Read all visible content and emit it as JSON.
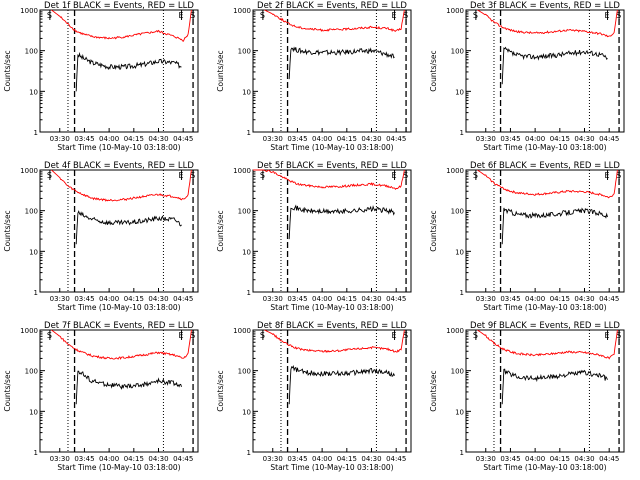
{
  "figure": {
    "ylabel": "Counts/sec",
    "xlabel": "Start Time (10-May-10 03:18:00)",
    "colors": {
      "events": "#000000",
      "lld": "#ff0000",
      "axes": "#000000"
    }
  },
  "chart_data": [
    {
      "type": "line",
      "title": "Det 1f BLACK = Events, RED = LLD",
      "xlabel": "Start Time (10-May-10 03:18:00)",
      "ylabel": "Counts/sec",
      "y_scale": "log",
      "ylim": [
        1,
        1000
      ],
      "xlim": [
        "03:18",
        "04:54"
      ],
      "xticks": [
        "03:30",
        "03:45",
        "04:00",
        "04:15",
        "04:30",
        "04:45"
      ],
      "yticks": [
        "1",
        "10",
        "100",
        "1000"
      ],
      "markers": [
        {
          "time": "03:24",
          "label": "S"
        },
        {
          "time": "04:44",
          "label": "E"
        },
        {
          "time": "04:51",
          "label": "S"
        }
      ],
      "dotted_lines": [
        "03:35",
        "04:33"
      ],
      "dashed_lines": [
        "03:39",
        "04:51"
      ],
      "series": [
        {
          "name": "Events",
          "color": "#000000",
          "x": [
            "03:40",
            "03:41",
            "03:43",
            "03:46",
            "03:50",
            "04:00",
            "04:10",
            "04:20",
            "04:30",
            "04:40",
            "04:44"
          ],
          "values": [
            10,
            80,
            70,
            60,
            50,
            40,
            40,
            45,
            55,
            50,
            40
          ]
        },
        {
          "name": "LLD",
          "color": "#ff0000",
          "x": [
            "03:25",
            "03:30",
            "03:35",
            "03:40",
            "03:45",
            "03:50",
            "04:00",
            "04:10",
            "04:20",
            "04:30",
            "04:40",
            "04:45",
            "04:48",
            "04:50"
          ],
          "values": [
            1000,
            700,
            450,
            300,
            250,
            220,
            200,
            220,
            260,
            300,
            220,
            180,
            250,
            1000
          ]
        }
      ]
    },
    {
      "type": "line",
      "title": "Det 2f BLACK = Events, RED = LLD",
      "xlabel": "Start Time (10-May-10 03:18:00)",
      "ylabel": "Counts/sec",
      "y_scale": "log",
      "ylim": [
        1,
        1000
      ],
      "xlim": [
        "03:18",
        "04:54"
      ],
      "xticks": [
        "03:30",
        "03:45",
        "04:00",
        "04:15",
        "04:30",
        "04:45"
      ],
      "yticks": [
        "1",
        "10",
        "100",
        "1000"
      ],
      "markers": [
        {
          "time": "03:24",
          "label": "S"
        },
        {
          "time": "04:44",
          "label": "E"
        },
        {
          "time": "04:51",
          "label": "S"
        }
      ],
      "dotted_lines": [
        "03:35",
        "04:33"
      ],
      "dashed_lines": [
        "03:39",
        "04:51"
      ],
      "series": [
        {
          "name": "Events",
          "color": "#000000",
          "x": [
            "03:40",
            "03:41",
            "03:43",
            "03:46",
            "03:50",
            "04:00",
            "04:10",
            "04:20",
            "04:30",
            "04:40",
            "04:44"
          ],
          "values": [
            20,
            120,
            110,
            100,
            95,
            90,
            90,
            95,
            100,
            80,
            70
          ]
        },
        {
          "name": "LLD",
          "color": "#ff0000",
          "x": [
            "03:25",
            "03:30",
            "03:35",
            "03:40",
            "03:45",
            "03:50",
            "04:00",
            "04:10",
            "04:20",
            "04:30",
            "04:40",
            "04:45",
            "04:48",
            "04:50"
          ],
          "values": [
            1000,
            800,
            600,
            450,
            380,
            350,
            320,
            330,
            350,
            380,
            350,
            300,
            350,
            1000
          ]
        }
      ]
    },
    {
      "type": "line",
      "title": "Det 3f BLACK = Events, RED = LLD",
      "xlabel": "Start Time (10-May-10 03:18:00)",
      "ylabel": "Counts/sec",
      "y_scale": "log",
      "ylim": [
        1,
        1000
      ],
      "xlim": [
        "03:18",
        "04:54"
      ],
      "xticks": [
        "03:30",
        "03:45",
        "04:00",
        "04:15",
        "04:30",
        "04:45"
      ],
      "yticks": [
        "1",
        "10",
        "100",
        "1000"
      ],
      "markers": [
        {
          "time": "03:24",
          "label": "S"
        },
        {
          "time": "04:44",
          "label": "E"
        },
        {
          "time": "04:51",
          "label": "S"
        }
      ],
      "dotted_lines": [
        "03:35",
        "04:33"
      ],
      "dashed_lines": [
        "03:39",
        "04:51"
      ],
      "series": [
        {
          "name": "Events",
          "color": "#000000",
          "x": [
            "03:40",
            "03:41",
            "03:43",
            "03:46",
            "03:50",
            "04:00",
            "04:10",
            "04:20",
            "04:30",
            "04:40",
            "04:44"
          ],
          "values": [
            15,
            110,
            100,
            85,
            75,
            70,
            75,
            85,
            95,
            80,
            65
          ]
        },
        {
          "name": "LLD",
          "color": "#ff0000",
          "x": [
            "03:25",
            "03:30",
            "03:35",
            "03:40",
            "03:45",
            "03:50",
            "04:00",
            "04:10",
            "04:20",
            "04:30",
            "04:40",
            "04:45",
            "04:48",
            "04:50"
          ],
          "values": [
            1000,
            750,
            500,
            380,
            320,
            290,
            270,
            290,
            320,
            300,
            260,
            220,
            280,
            1000
          ]
        }
      ]
    },
    {
      "type": "line",
      "title": "Det 4f BLACK = Events, RED = LLD",
      "xlabel": "Start Time (10-May-10 03:18:00)",
      "ylabel": "Counts/sec",
      "y_scale": "log",
      "ylim": [
        1,
        1000
      ],
      "xlim": [
        "03:18",
        "04:54"
      ],
      "xticks": [
        "03:30",
        "03:45",
        "04:00",
        "04:15",
        "04:30",
        "04:45"
      ],
      "yticks": [
        "1",
        "10",
        "100",
        "1000"
      ],
      "markers": [
        {
          "time": "03:24",
          "label": "S"
        },
        {
          "time": "04:44",
          "label": "E"
        },
        {
          "time": "04:51",
          "label": "S"
        }
      ],
      "dotted_lines": [
        "03:35",
        "04:33"
      ],
      "dashed_lines": [
        "03:39",
        "04:51"
      ],
      "series": [
        {
          "name": "Events",
          "color": "#000000",
          "x": [
            "03:40",
            "03:41",
            "03:43",
            "03:46",
            "03:50",
            "04:00",
            "04:10",
            "04:20",
            "04:30",
            "04:40",
            "04:44"
          ],
          "values": [
            15,
            90,
            80,
            70,
            60,
            50,
            50,
            55,
            65,
            60,
            45
          ]
        },
        {
          "name": "LLD",
          "color": "#ff0000",
          "x": [
            "03:25",
            "03:30",
            "03:35",
            "03:40",
            "03:45",
            "03:50",
            "04:00",
            "04:10",
            "04:20",
            "04:30",
            "04:40",
            "04:45",
            "04:48",
            "04:50"
          ],
          "values": [
            1000,
            650,
            400,
            300,
            240,
            200,
            180,
            190,
            220,
            250,
            220,
            190,
            240,
            1000
          ]
        }
      ]
    },
    {
      "type": "line",
      "title": "Det 5f BLACK = Events, RED = LLD",
      "xlabel": "Start Time (10-May-10 03:18:00)",
      "ylabel": "Counts/sec",
      "y_scale": "log",
      "ylim": [
        1,
        1000
      ],
      "xlim": [
        "03:18",
        "04:54"
      ],
      "xticks": [
        "03:30",
        "03:45",
        "04:00",
        "04:15",
        "04:30",
        "04:45"
      ],
      "yticks": [
        "1",
        "10",
        "100",
        "1000"
      ],
      "markers": [
        {
          "time": "03:24",
          "label": "S"
        },
        {
          "time": "04:44",
          "label": "E"
        },
        {
          "time": "04:51",
          "label": "S"
        }
      ],
      "dotted_lines": [
        "03:35",
        "04:33"
      ],
      "dashed_lines": [
        "03:39",
        "04:51"
      ],
      "series": [
        {
          "name": "Events",
          "color": "#000000",
          "x": [
            "03:40",
            "03:41",
            "03:43",
            "03:46",
            "03:50",
            "04:00",
            "04:10",
            "04:20",
            "04:30",
            "04:40",
            "04:44"
          ],
          "values": [
            20,
            130,
            120,
            110,
            100,
            95,
            95,
            100,
            110,
            100,
            90
          ]
        },
        {
          "name": "LLD",
          "color": "#ff0000",
          "x": [
            "03:18",
            "03:25",
            "03:30",
            "03:35",
            "03:40",
            "03:45",
            "03:50",
            "04:00",
            "04:10",
            "04:20",
            "04:30",
            "04:40",
            "04:45",
            "04:48",
            "04:50"
          ],
          "values": [
            1000,
            1000,
            900,
            700,
            550,
            450,
            420,
            380,
            390,
            420,
            450,
            400,
            350,
            400,
            1000
          ]
        }
      ]
    },
    {
      "type": "line",
      "title": "Det 6f BLACK = Events, RED = LLD",
      "xlabel": "Start Time (10-May-10 03:18:00)",
      "ylabel": "Counts/sec",
      "y_scale": "log",
      "ylim": [
        1,
        1000
      ],
      "xlim": [
        "03:18",
        "04:54"
      ],
      "xticks": [
        "03:30",
        "03:45",
        "04:00",
        "04:15",
        "04:30",
        "04:45"
      ],
      "yticks": [
        "1",
        "10",
        "100",
        "1000"
      ],
      "markers": [
        {
          "time": "03:24",
          "label": "S"
        },
        {
          "time": "04:44",
          "label": "E"
        },
        {
          "time": "04:51",
          "label": "S"
        }
      ],
      "dotted_lines": [
        "03:35",
        "04:33"
      ],
      "dashed_lines": [
        "03:39",
        "04:51"
      ],
      "series": [
        {
          "name": "Events",
          "color": "#000000",
          "x": [
            "03:40",
            "03:41",
            "03:43",
            "03:46",
            "03:50",
            "04:00",
            "04:10",
            "04:20",
            "04:30",
            "04:40",
            "04:44"
          ],
          "values": [
            15,
            110,
            100,
            90,
            80,
            75,
            80,
            90,
            100,
            85,
            70
          ]
        },
        {
          "name": "LLD",
          "color": "#ff0000",
          "x": [
            "03:25",
            "03:30",
            "03:35",
            "03:40",
            "03:45",
            "03:50",
            "04:00",
            "04:10",
            "04:20",
            "04:30",
            "04:40",
            "04:45",
            "04:48",
            "04:50"
          ],
          "values": [
            1000,
            720,
            480,
            360,
            300,
            270,
            250,
            270,
            300,
            290,
            250,
            210,
            260,
            1000
          ]
        }
      ]
    },
    {
      "type": "line",
      "title": "Det 7f BLACK = Events, RED = LLD",
      "xlabel": "Start Time (10-May-10 03:18:00)",
      "ylabel": "Counts/sec",
      "y_scale": "log",
      "ylim": [
        1,
        1000
      ],
      "xlim": [
        "03:18",
        "04:54"
      ],
      "xticks": [
        "03:30",
        "03:45",
        "04:00",
        "04:15",
        "04:30",
        "04:45"
      ],
      "yticks": [
        "1",
        "10",
        "100",
        "1000"
      ],
      "markers": [
        {
          "time": "03:24",
          "label": "S"
        },
        {
          "time": "04:44",
          "label": "E"
        },
        {
          "time": "04:51",
          "label": "S"
        }
      ],
      "dotted_lines": [
        "03:35",
        "04:33"
      ],
      "dashed_lines": [
        "03:39",
        "04:51"
      ],
      "series": [
        {
          "name": "Events",
          "color": "#000000",
          "x": [
            "03:40",
            "03:41",
            "03:43",
            "03:46",
            "03:50",
            "04:00",
            "04:10",
            "04:20",
            "04:30",
            "04:40",
            "04:44"
          ],
          "values": [
            15,
            100,
            90,
            70,
            55,
            45,
            40,
            45,
            55,
            50,
            40
          ]
        },
        {
          "name": "LLD",
          "color": "#ff0000",
          "x": [
            "03:25",
            "03:30",
            "03:35",
            "03:40",
            "03:45",
            "03:50",
            "04:00",
            "04:10",
            "04:20",
            "04:30",
            "04:40",
            "04:45",
            "04:48",
            "04:50"
          ],
          "values": [
            1000,
            700,
            450,
            330,
            270,
            230,
            200,
            210,
            240,
            280,
            240,
            200,
            260,
            1000
          ]
        }
      ]
    },
    {
      "type": "line",
      "title": "Det 8f BLACK = Events, RED = LLD",
      "xlabel": "Start Time (10-May-10 03:18:00)",
      "ylabel": "Counts/sec",
      "y_scale": "log",
      "ylim": [
        1,
        1000
      ],
      "xlim": [
        "03:18",
        "04:54"
      ],
      "xticks": [
        "03:30",
        "03:45",
        "04:00",
        "04:15",
        "04:30",
        "04:45"
      ],
      "yticks": [
        "1",
        "10",
        "100",
        "1000"
      ],
      "markers": [
        {
          "time": "03:24",
          "label": "S"
        },
        {
          "time": "04:44",
          "label": "E"
        },
        {
          "time": "04:51",
          "label": "S"
        }
      ],
      "dotted_lines": [
        "03:35",
        "04:33"
      ],
      "dashed_lines": [
        "03:39",
        "04:51"
      ],
      "series": [
        {
          "name": "Events",
          "color": "#000000",
          "x": [
            "03:40",
            "03:41",
            "03:43",
            "03:46",
            "03:50",
            "04:00",
            "04:10",
            "04:20",
            "04:30",
            "04:40",
            "04:44"
          ],
          "values": [
            15,
            120,
            110,
            100,
            90,
            85,
            85,
            90,
            100,
            90,
            75
          ]
        },
        {
          "name": "LLD",
          "color": "#ff0000",
          "x": [
            "03:25",
            "03:30",
            "03:35",
            "03:40",
            "03:45",
            "03:50",
            "04:00",
            "04:10",
            "04:20",
            "04:30",
            "04:40",
            "04:45",
            "04:48",
            "04:50"
          ],
          "values": [
            1000,
            800,
            550,
            420,
            350,
            320,
            300,
            310,
            340,
            370,
            340,
            290,
            340,
            1000
          ]
        }
      ]
    },
    {
      "type": "line",
      "title": "Det 9f BLACK = Events, RED = LLD",
      "xlabel": "Start Time (10-May-10 03:18:00)",
      "ylabel": "Counts/sec",
      "y_scale": "log",
      "ylim": [
        1,
        1000
      ],
      "xlim": [
        "03:18",
        "04:54"
      ],
      "xticks": [
        "03:30",
        "03:45",
        "04:00",
        "04:15",
        "04:30",
        "04:45"
      ],
      "yticks": [
        "1",
        "10",
        "100",
        "1000"
      ],
      "markers": [
        {
          "time": "03:24",
          "label": "S"
        },
        {
          "time": "04:44",
          "label": "E"
        },
        {
          "time": "04:51",
          "label": "S"
        }
      ],
      "dotted_lines": [
        "03:35",
        "04:33"
      ],
      "dashed_lines": [
        "03:39",
        "04:51"
      ],
      "series": [
        {
          "name": "Events",
          "color": "#000000",
          "x": [
            "03:40",
            "03:41",
            "03:43",
            "03:46",
            "03:50",
            "04:00",
            "04:10",
            "04:20",
            "04:30",
            "04:40",
            "04:44"
          ],
          "values": [
            15,
            100,
            90,
            80,
            70,
            65,
            70,
            80,
            90,
            75,
            60
          ]
        },
        {
          "name": "LLD",
          "color": "#ff0000",
          "x": [
            "03:25",
            "03:30",
            "03:35",
            "03:40",
            "03:45",
            "03:50",
            "04:00",
            "04:10",
            "04:20",
            "04:30",
            "04:40",
            "04:45",
            "04:48",
            "04:50"
          ],
          "values": [
            1000,
            720,
            470,
            350,
            290,
            260,
            240,
            260,
            290,
            280,
            240,
            200,
            250,
            1000
          ]
        }
      ]
    }
  ]
}
